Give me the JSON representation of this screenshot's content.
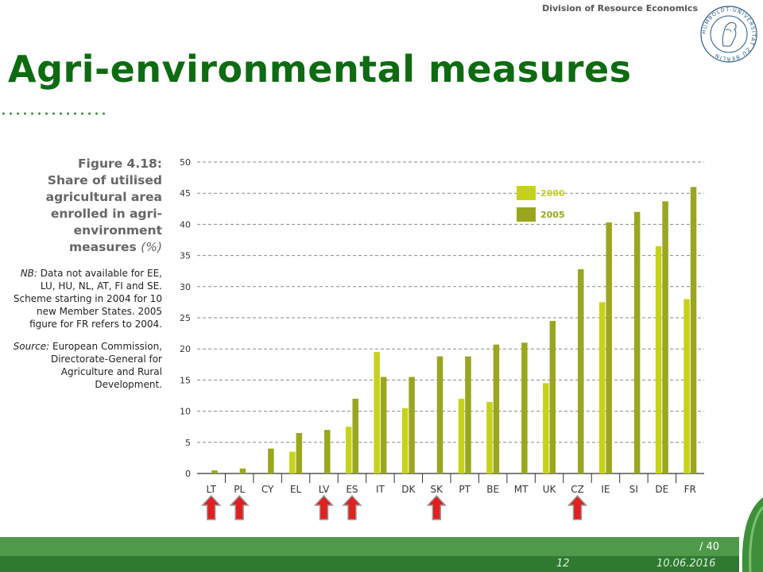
{
  "header": {
    "division": "Division of Resource Economics",
    "seal_text": "HUMBOLDT-UNIVERSITÄT ZU BERLIN"
  },
  "title": "Agri-environmental measures",
  "figure": {
    "label": "Figure 4.18:",
    "title": "Share of utilised agricultural area enrolled in agri-environment measures",
    "unit": "(%)",
    "nb_label": "NB:",
    "nb_text": "Data not available for EE, LU, HU, NL, AT, FI and SE. Scheme starting in 2004 for 10 new Member States. 2005 figure for FR refers to 2004.",
    "source_label": "Source:",
    "source_text": "European Commission, Directorate-General for Agriculture and Rural Development."
  },
  "chart_data": {
    "type": "bar",
    "categories": [
      "LT",
      "PL",
      "CY",
      "EL",
      "LV",
      "ES",
      "IT",
      "DK",
      "SK",
      "PT",
      "BE",
      "MT",
      "UK",
      "CZ",
      "IE",
      "SI",
      "DE",
      "FR"
    ],
    "series": [
      {
        "name": "2000",
        "color": "#c6d21a",
        "values": [
          null,
          null,
          null,
          3.5,
          null,
          7.5,
          19.5,
          10.5,
          null,
          12,
          11.5,
          null,
          14.5,
          null,
          27.5,
          null,
          36.5,
          28
        ]
      },
      {
        "name": "2005",
        "color": "#9aa61e",
        "values": [
          0.5,
          0.8,
          4,
          6.5,
          7,
          12,
          15.5,
          15.5,
          18.8,
          18.8,
          20.7,
          21,
          24.5,
          32.8,
          40.3,
          42,
          43.7,
          46
        ]
      }
    ],
    "ylim": [
      0,
      50
    ],
    "yticks": [
      "0",
      "5",
      "10",
      "15",
      "20",
      "25",
      "30",
      "35",
      "40",
      "45",
      "50"
    ],
    "grid": true,
    "legend_position": "top-right",
    "arrows": [
      "LT",
      "PL",
      "LV",
      "ES",
      "SK",
      "CZ"
    ],
    "arrow_color": "#e02020"
  },
  "footer": {
    "page_total": "/ 40",
    "page": "12",
    "date": "10.06.2016"
  }
}
